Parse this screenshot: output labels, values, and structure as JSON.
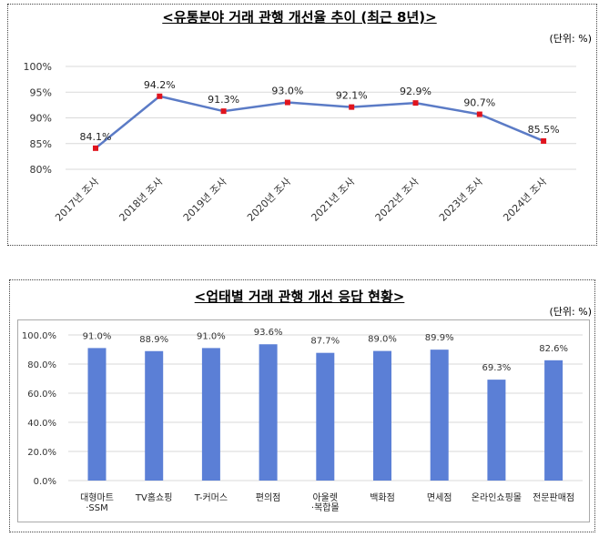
{
  "chart_data": [
    {
      "type": "line",
      "title": "<유통분야 거래 관행 개선율 추이 (최근 8년)>",
      "unit": "(단위: %)",
      "categories": [
        "2017년 조사",
        "2018년 조사",
        "2019년 조사",
        "2020년 조사",
        "2021년 조사",
        "2022년 조사",
        "2023년 조사",
        "2024년 조사"
      ],
      "values": [
        84.1,
        94.2,
        91.3,
        93.0,
        92.1,
        92.9,
        90.7,
        85.5
      ],
      "data_labels": [
        "84.1%",
        "94.2%",
        "91.3%",
        "93.0%",
        "92.1%",
        "92.9%",
        "90.7%",
        "85.5%"
      ],
      "yticks": [
        "80%",
        "85%",
        "90%",
        "95%",
        "100%"
      ],
      "ylim": [
        80,
        100
      ],
      "grid": true,
      "line_color": "#5B7BC6",
      "marker_color": "#E0141E"
    },
    {
      "type": "bar",
      "title": "<업태별 거래 관행 개선 응답 현황>",
      "unit": "(단위: %)",
      "categories": [
        [
          "대형마트",
          "·SSM"
        ],
        [
          "TV홈쇼핑"
        ],
        [
          "T-커머스"
        ],
        [
          "편의점"
        ],
        [
          "아울렛",
          "·복합몰"
        ],
        [
          "백화점"
        ],
        [
          "면세점"
        ],
        [
          "온라인쇼핑몰"
        ],
        [
          "전문판매점"
        ]
      ],
      "values": [
        91.0,
        88.9,
        91.0,
        93.6,
        87.7,
        89.0,
        89.9,
        69.3,
        82.6
      ],
      "data_labels": [
        "91.0%",
        "88.9%",
        "91.0%",
        "93.6%",
        "87.7%",
        "89.0%",
        "89.9%",
        "69.3%",
        "82.6%"
      ],
      "yticks": [
        "0.0%",
        "20.0%",
        "40.0%",
        "60.0%",
        "80.0%",
        "100.0%"
      ],
      "ylim": [
        0,
        100
      ],
      "grid": true,
      "bar_color": "#5B7FD6"
    }
  ]
}
